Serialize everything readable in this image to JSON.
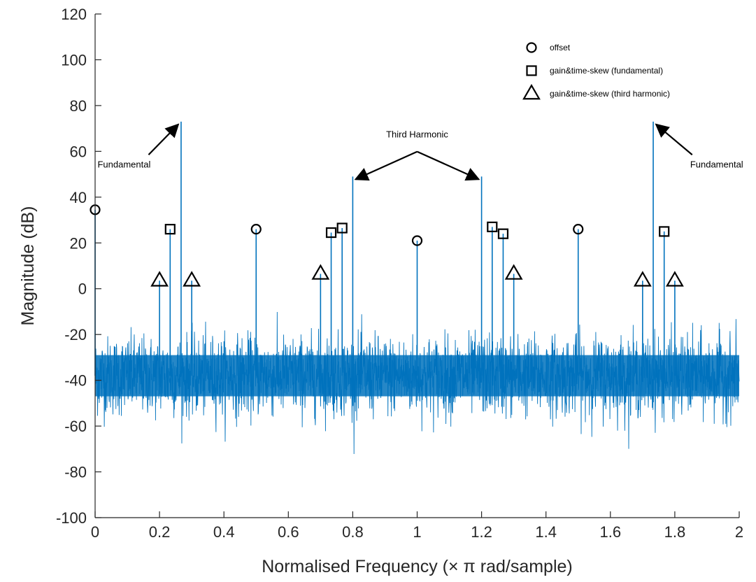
{
  "chart_data": {
    "type": "line",
    "title": "",
    "xlabel": "Normalised Frequency (× π rad/sample)",
    "ylabel": "Magnitude (dB)",
    "xlim": [
      0,
      2
    ],
    "ylim": [
      -100,
      120
    ],
    "x_ticks": [
      0,
      0.2,
      0.4,
      0.6,
      0.8,
      1,
      1.2,
      1.4,
      1.6,
      1.8,
      2
    ],
    "x_tick_labels": [
      "0",
      "0.2",
      "0.4",
      "0.6",
      "0.8",
      "1",
      "1.2",
      "1.4",
      "1.6",
      "1.8",
      "2"
    ],
    "y_ticks": [
      -100,
      -80,
      -60,
      -40,
      -20,
      0,
      20,
      40,
      60,
      80,
      100,
      120
    ],
    "y_tick_labels": [
      "-100",
      "-80",
      "-60",
      "-40",
      "-20",
      "0",
      "20",
      "40",
      "60",
      "80",
      "100",
      "120"
    ],
    "grid": false,
    "line_color": "#0072BD",
    "noise_floor": {
      "mean": -38,
      "typical_low": -58,
      "typical_high": -18,
      "min": -74,
      "max": -8
    },
    "spikes": [
      {
        "x": 0.0,
        "y": 34.5,
        "marker": "circle"
      },
      {
        "x": 0.2,
        "y": 3.5,
        "marker": "triangle"
      },
      {
        "x": 0.233,
        "y": 26,
        "marker": "square"
      },
      {
        "x": 0.267,
        "y": 73,
        "marker": "none"
      },
      {
        "x": 0.3,
        "y": 3.5,
        "marker": "triangle"
      },
      {
        "x": 0.5,
        "y": 26,
        "marker": "circle"
      },
      {
        "x": 0.7,
        "y": 6.5,
        "marker": "triangle"
      },
      {
        "x": 0.733,
        "y": 24.5,
        "marker": "square"
      },
      {
        "x": 0.767,
        "y": 26.5,
        "marker": "square"
      },
      {
        "x": 0.8,
        "y": 49,
        "marker": "none"
      },
      {
        "x": 1.0,
        "y": 21,
        "marker": "circle"
      },
      {
        "x": 1.2,
        "y": 49,
        "marker": "none"
      },
      {
        "x": 1.233,
        "y": 27,
        "marker": "square"
      },
      {
        "x": 1.267,
        "y": 24,
        "marker": "square"
      },
      {
        "x": 1.3,
        "y": 6.5,
        "marker": "triangle"
      },
      {
        "x": 1.5,
        "y": 26,
        "marker": "circle"
      },
      {
        "x": 1.7,
        "y": 3.5,
        "marker": "triangle"
      },
      {
        "x": 1.733,
        "y": 73,
        "marker": "none"
      },
      {
        "x": 1.767,
        "y": 25,
        "marker": "square"
      },
      {
        "x": 1.8,
        "y": 3.5,
        "marker": "triangle"
      }
    ],
    "legend": {
      "position": "top-right",
      "entries": [
        {
          "marker": "circle",
          "label": "offset"
        },
        {
          "marker": "square",
          "label": "gain&time-skew (fundamental)"
        },
        {
          "marker": "triangle",
          "label": "gain&time-skew (third harmonic)"
        }
      ]
    },
    "annotations": [
      {
        "text": "Fundamental",
        "arrow_to": {
          "x": 0.267,
          "y": 73
        },
        "text_at": {
          "x": 0.09,
          "y": 53
        }
      },
      {
        "text": "Third Harmonic",
        "arrow_to": [
          {
            "x": 0.8,
            "y": 49
          },
          {
            "x": 1.2,
            "y": 49
          }
        ],
        "text_at": {
          "x": 1.0,
          "y": 66
        }
      },
      {
        "text": "Fundamental",
        "arrow_to": {
          "x": 1.733,
          "y": 73
        },
        "text_at": {
          "x": 1.93,
          "y": 53
        }
      }
    ]
  }
}
